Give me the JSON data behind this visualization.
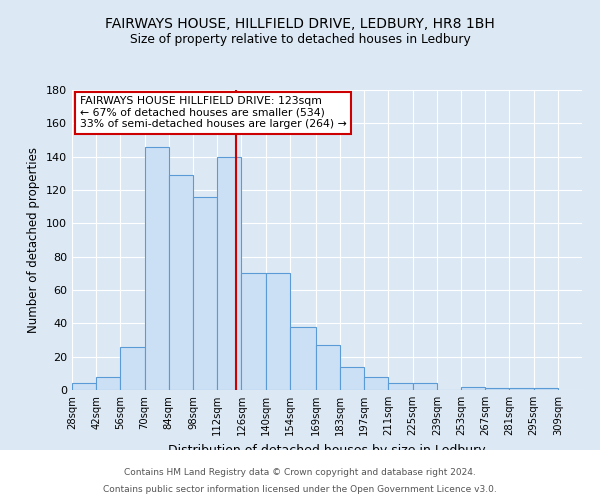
{
  "title1": "FAIRWAYS HOUSE, HILLFIELD DRIVE, LEDBURY, HR8 1BH",
  "title2": "Size of property relative to detached houses in Ledbury",
  "xlabel": "Distribution of detached houses by size in Ledbury",
  "ylabel": "Number of detached properties",
  "bar_left_edges": [
    28,
    42,
    56,
    70,
    84,
    98,
    112,
    126,
    140,
    154,
    169,
    183,
    197,
    211,
    225,
    239,
    253,
    267,
    281,
    295
  ],
  "bar_widths": [
    14,
    14,
    14,
    14,
    14,
    14,
    14,
    14,
    14,
    15,
    14,
    14,
    14,
    14,
    14,
    14,
    14,
    14,
    14,
    14
  ],
  "bar_heights": [
    4,
    8,
    26,
    146,
    129,
    116,
    140,
    70,
    70,
    38,
    27,
    14,
    8,
    4,
    4,
    0,
    2,
    1,
    1,
    1
  ],
  "tick_labels": [
    "28sqm",
    "42sqm",
    "56sqm",
    "70sqm",
    "84sqm",
    "98sqm",
    "112sqm",
    "126sqm",
    "140sqm",
    "154sqm",
    "169sqm",
    "183sqm",
    "197sqm",
    "211sqm",
    "225sqm",
    "239sqm",
    "253sqm",
    "267sqm",
    "281sqm",
    "295sqm",
    "309sqm"
  ],
  "bar_color": "#cce0f5",
  "bar_edge_color": "#5b9bd5",
  "vline_x": 123,
  "vline_color": "#cc0000",
  "annotation_title": "FAIRWAYS HOUSE HILLFIELD DRIVE: 123sqm",
  "annotation_line1": "← 67% of detached houses are smaller (534)",
  "annotation_line2": "33% of semi-detached houses are larger (264) →",
  "annotation_box_color": "#ffffff",
  "annotation_box_edge": "#cc0000",
  "ylim": [
    0,
    180
  ],
  "yticks": [
    0,
    20,
    40,
    60,
    80,
    100,
    120,
    140,
    160,
    180
  ],
  "footer1": "Contains HM Land Registry data © Crown copyright and database right 2024.",
  "footer2": "Contains public sector information licensed under the Open Government Licence v3.0.",
  "background_color": "#dce9f5",
  "plot_bg_color": "#dce9f5",
  "footer_bg_color": "#ffffff"
}
